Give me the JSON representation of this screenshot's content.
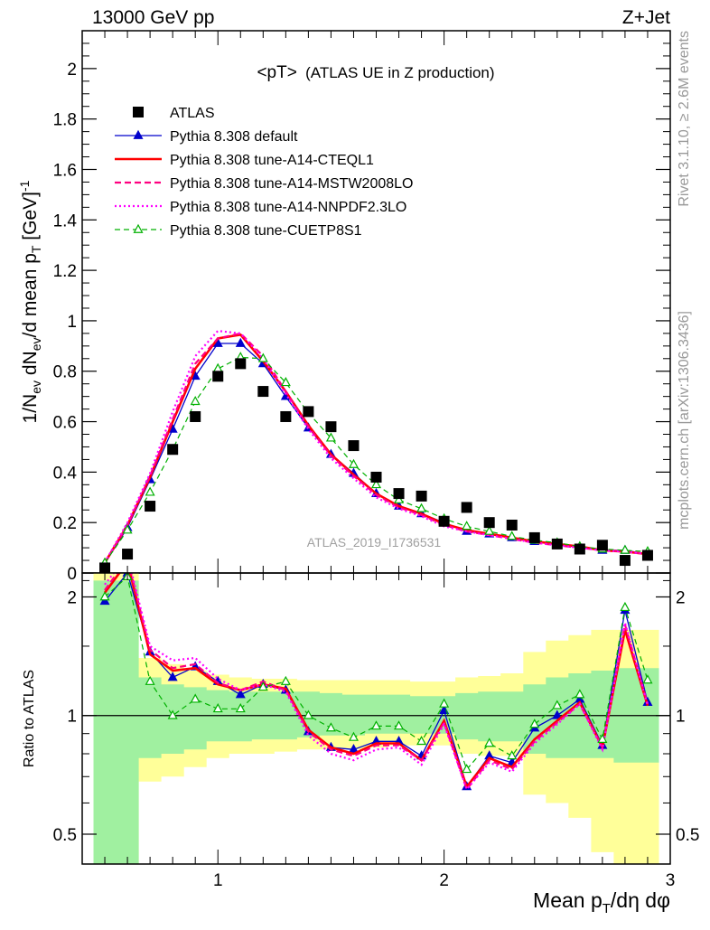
{
  "header": {
    "energy_label": "13000 GeV pp",
    "process_label": "Z+Jet"
  },
  "side_labels": {
    "rivet": "Rivet 3.1.10, ≥ 2.6M events",
    "mcplots": "mcplots.cern.ch [arXiv:1306.3436]"
  },
  "colors": {
    "atlas": "#000000",
    "default": "#0000cc",
    "cteql1": "#ff0000",
    "mstw": "#ff0080",
    "nnpdf": "#ff00ff",
    "cuetp8s1": "#00b000",
    "band_inner": "#a0f0a0",
    "band_outer": "#ffff99"
  },
  "chart_data": [
    {
      "type": "line",
      "title": "<pT>",
      "subtitle": "(ATLAS UE in Z production)",
      "watermark": "ATLAS_2019_I1736531",
      "ylabel_parts": {
        "a": "1/N",
        "a_sub": "ev",
        "b": " dN",
        "b_sub": "ev",
        "c": "/d mean p",
        "c_sub": "T",
        "d": " [GeV]",
        "d_sup": "-1"
      },
      "xlim": [
        0.4,
        3.0
      ],
      "ylim": [
        0,
        2.15
      ],
      "yticks": [
        0,
        0.2,
        0.4,
        0.6,
        0.8,
        1,
        1.2,
        1.4,
        1.6,
        1.8,
        2
      ],
      "ytick_labels": [
        "0",
        "0.2",
        "0.4",
        "0.6",
        "0.8",
        "1",
        "1.2",
        "1.4",
        "1.6",
        "1.8",
        "2"
      ],
      "legend_position": "top-left",
      "x": [
        0.5,
        0.6,
        0.7,
        0.8,
        0.9,
        1.0,
        1.1,
        1.2,
        1.3,
        1.4,
        1.5,
        1.6,
        1.7,
        1.8,
        1.9,
        2.0,
        2.1,
        2.2,
        2.3,
        2.4,
        2.5,
        2.6,
        2.7,
        2.8,
        2.9
      ],
      "series": [
        {
          "name": "ATLAS",
          "key": "atlas",
          "style": "markers",
          "values": [
            0.02,
            0.075,
            0.265,
            0.49,
            0.62,
            0.78,
            0.83,
            0.72,
            0.62,
            0.64,
            0.58,
            0.505,
            0.38,
            0.315,
            0.305,
            0.205,
            0.26,
            0.2,
            0.19,
            0.14,
            0.115,
            0.095,
            0.11,
            0.05,
            0.07
          ]
        },
        {
          "name": "Pythia 8.308 default",
          "key": "default",
          "style": "solid-triangle",
          "values": [
            0.038,
            0.18,
            0.37,
            0.57,
            0.78,
            0.91,
            0.91,
            0.83,
            0.7,
            0.575,
            0.47,
            0.395,
            0.315,
            0.265,
            0.235,
            0.2,
            0.165,
            0.155,
            0.14,
            0.125,
            0.115,
            0.1,
            0.09,
            0.09,
            0.075
          ]
        },
        {
          "name": "Pythia 8.308 tune-A14-CTEQL1",
          "key": "cteql1",
          "style": "solid",
          "values": [
            0.04,
            0.19,
            0.38,
            0.6,
            0.81,
            0.93,
            0.945,
            0.84,
            0.72,
            0.585,
            0.47,
            0.39,
            0.315,
            0.265,
            0.235,
            0.195,
            0.17,
            0.155,
            0.14,
            0.125,
            0.115,
            0.105,
            0.09,
            0.085,
            0.075
          ]
        },
        {
          "name": "Pythia 8.308 tune-A14-MSTW2008LO",
          "key": "mstw",
          "style": "dashed",
          "values": [
            0.04,
            0.19,
            0.385,
            0.61,
            0.83,
            0.93,
            0.95,
            0.86,
            0.72,
            0.58,
            0.465,
            0.385,
            0.31,
            0.26,
            0.23,
            0.19,
            0.165,
            0.15,
            0.135,
            0.12,
            0.11,
            0.1,
            0.09,
            0.085,
            0.075
          ]
        },
        {
          "name": "Pythia 8.308 tune-A14-NNPDF2.3LO",
          "key": "nnpdf",
          "style": "dotted",
          "values": [
            0.042,
            0.2,
            0.395,
            0.64,
            0.86,
            0.96,
            0.95,
            0.85,
            0.71,
            0.57,
            0.455,
            0.375,
            0.3,
            0.255,
            0.225,
            0.185,
            0.165,
            0.15,
            0.135,
            0.12,
            0.11,
            0.1,
            0.09,
            0.085,
            0.075
          ]
        },
        {
          "name": "Pythia 8.308 tune-CUETP8S1",
          "key": "cuetp8s1",
          "style": "dashed-triangle-open",
          "values": [
            0.04,
            0.17,
            0.32,
            0.49,
            0.68,
            0.81,
            0.855,
            0.85,
            0.755,
            0.635,
            0.535,
            0.43,
            0.35,
            0.29,
            0.255,
            0.215,
            0.185,
            0.165,
            0.145,
            0.13,
            0.12,
            0.105,
            0.095,
            0.09,
            0.085
          ]
        }
      ]
    },
    {
      "type": "line",
      "ylabel": "Ratio to ATLAS",
      "xlabel": "Mean p",
      "xlabel_sub": "T",
      "xlabel_tail": "/dη dφ",
      "scale": "log",
      "ylim": [
        0.42,
        2.3
      ],
      "yticks": [
        0.5,
        1,
        2
      ],
      "ytick_labels": [
        "0.5",
        "1",
        "2"
      ],
      "xticks": [
        1,
        2,
        3
      ],
      "xtick_labels": [
        "1",
        "2",
        "3"
      ],
      "x": [
        0.5,
        0.6,
        0.7,
        0.8,
        0.9,
        1.0,
        1.1,
        1.2,
        1.3,
        1.4,
        1.5,
        1.6,
        1.7,
        1.8,
        1.9,
        2.0,
        2.1,
        2.2,
        2.3,
        2.4,
        2.5,
        2.6,
        2.7,
        2.8,
        2.9
      ],
      "band_inner": {
        "low": [
          0.3,
          0.3,
          0.78,
          0.8,
          0.82,
          0.86,
          0.86,
          0.87,
          0.87,
          0.88,
          0.89,
          0.89,
          0.9,
          0.9,
          0.9,
          0.9,
          0.87,
          0.86,
          0.86,
          0.8,
          0.78,
          0.78,
          0.78,
          0.76,
          0.76
        ],
        "high": [
          2.2,
          2.2,
          1.25,
          1.2,
          1.18,
          1.16,
          1.15,
          1.15,
          1.15,
          1.15,
          1.14,
          1.13,
          1.13,
          1.13,
          1.12,
          1.12,
          1.14,
          1.15,
          1.15,
          1.2,
          1.25,
          1.28,
          1.3,
          1.32,
          1.32
        ]
      },
      "band_outer": {
        "low": [
          0.3,
          0.3,
          0.68,
          0.7,
          0.74,
          0.78,
          0.8,
          0.8,
          0.81,
          0.82,
          0.82,
          0.82,
          0.83,
          0.84,
          0.84,
          0.84,
          0.8,
          0.79,
          0.79,
          0.63,
          0.6,
          0.55,
          0.45,
          0.36,
          0.36
        ],
        "high": [
          2.3,
          2.3,
          1.4,
          1.35,
          1.3,
          1.27,
          1.25,
          1.24,
          1.24,
          1.23,
          1.23,
          1.23,
          1.23,
          1.23,
          1.22,
          1.22,
          1.25,
          1.26,
          1.28,
          1.45,
          1.55,
          1.6,
          1.65,
          1.65,
          1.65
        ]
      },
      "series": [
        {
          "name": "Pythia 8.308 default",
          "key": "default",
          "style": "solid-triangle",
          "values": [
            1.95,
            2.3,
            1.45,
            1.25,
            1.33,
            1.22,
            1.13,
            1.2,
            1.16,
            0.91,
            0.83,
            0.82,
            0.86,
            0.86,
            0.79,
            1.03,
            0.66,
            0.79,
            0.76,
            0.93,
            1.0,
            1.1,
            0.84,
            1.85,
            1.08
          ]
        },
        {
          "name": "Pythia 8.308 tune-A14-CTEQL1",
          "key": "cteql1",
          "style": "solid",
          "values": [
            2.05,
            2.45,
            1.43,
            1.3,
            1.32,
            1.2,
            1.16,
            1.2,
            1.17,
            0.92,
            0.83,
            0.8,
            0.85,
            0.85,
            0.77,
            0.97,
            0.66,
            0.78,
            0.74,
            0.87,
            0.97,
            1.08,
            0.83,
            1.65,
            1.06
          ]
        },
        {
          "name": "Pythia 8.308 tune-A14-MSTW2008LO",
          "key": "mstw",
          "style": "dashed",
          "values": [
            2.08,
            2.5,
            1.47,
            1.32,
            1.35,
            1.21,
            1.16,
            1.22,
            1.16,
            0.91,
            0.82,
            0.79,
            0.84,
            0.84,
            0.77,
            0.96,
            0.65,
            0.77,
            0.73,
            0.86,
            0.96,
            1.07,
            0.83,
            1.7,
            1.07
          ]
        },
        {
          "name": "Pythia 8.308 tune-A14-NNPDF2.3LO",
          "key": "nnpdf",
          "style": "dotted",
          "values": [
            2.15,
            2.55,
            1.5,
            1.38,
            1.4,
            1.24,
            1.16,
            1.2,
            1.15,
            0.89,
            0.8,
            0.77,
            0.82,
            0.83,
            0.75,
            0.95,
            0.65,
            0.76,
            0.72,
            0.85,
            0.95,
            1.07,
            0.82,
            1.72,
            1.06
          ]
        },
        {
          "name": "Pythia 8.308 tune-CUETP8S1",
          "key": "cuetp8s1",
          "style": "dashed-triangle-open",
          "values": [
            2.0,
            2.25,
            1.22,
            1.0,
            1.1,
            1.04,
            1.04,
            1.18,
            1.22,
            1.0,
            0.93,
            0.88,
            0.94,
            0.94,
            0.86,
            1.07,
            0.73,
            0.85,
            0.79,
            0.95,
            1.06,
            1.13,
            0.87,
            1.88,
            1.23
          ]
        }
      ]
    }
  ]
}
